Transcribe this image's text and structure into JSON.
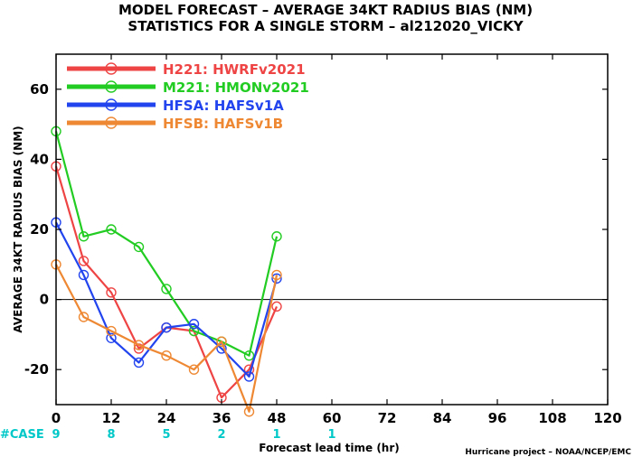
{
  "title_line1": "MODEL FORECAST – AVERAGE 34KT RADIUS BIAS (NM)",
  "title_line2": "STATISTICS FOR A SINGLE STORM – al212020_VICKY",
  "footer": "Hurricane project – NOAA/NCEP/EMC",
  "case_label": "#CASE",
  "case_color": "#00c8c8",
  "case_counts": [
    {
      "x": 0,
      "count": "9"
    },
    {
      "x": 12,
      "count": "8"
    },
    {
      "x": 24,
      "count": "5"
    },
    {
      "x": 36,
      "count": "2"
    },
    {
      "x": 48,
      "count": "1"
    },
    {
      "x": 60,
      "count": "1"
    }
  ],
  "chart_data": {
    "type": "line",
    "title": "MODEL FORECAST – AVERAGE 34KT RADIUS BIAS (NM)",
    "subtitle": "STATISTICS FOR A SINGLE STORM – al212020_VICKY",
    "xlabel": "Forecast lead time (hr)",
    "ylabel": "AVERAGE 34KT RADIUS BIAS (NM)",
    "xlim": [
      0,
      120
    ],
    "ylim": [
      -30,
      70
    ],
    "xticks": [
      0,
      12,
      24,
      36,
      48,
      60,
      72,
      84,
      96,
      108,
      120
    ],
    "yticks": [
      -20,
      0,
      20,
      40,
      60
    ],
    "zero_line": true,
    "legend_position": "top-left",
    "series": [
      {
        "name": "H221: HWRFv2021",
        "color": "#ee4444",
        "x": [
          0,
          6,
          12,
          18,
          24,
          30,
          36,
          42,
          48
        ],
        "values": [
          38,
          11,
          2,
          -14,
          -8,
          -9,
          -28,
          -20,
          -2
        ]
      },
      {
        "name": "M221: HMONv2021",
        "color": "#22cc22",
        "x": [
          0,
          6,
          12,
          18,
          24,
          30,
          36,
          42,
          48
        ],
        "values": [
          48,
          18,
          20,
          15,
          3,
          -9,
          -12,
          -16,
          18
        ]
      },
      {
        "name": "HFSA: HAFSv1A",
        "color": "#2244ee",
        "x": [
          0,
          6,
          12,
          18,
          24,
          30,
          36,
          42,
          48
        ],
        "values": [
          22,
          7,
          -11,
          -18,
          -8,
          -7,
          -14,
          -22,
          6
        ]
      },
      {
        "name": "HFSB: HAFSv1B",
        "color": "#ee8833",
        "x": [
          0,
          6,
          12,
          18,
          24,
          30,
          36,
          42,
          48
        ],
        "values": [
          10,
          -5,
          -9,
          -13,
          -16,
          -20,
          -12,
          -32,
          7
        ]
      }
    ]
  }
}
